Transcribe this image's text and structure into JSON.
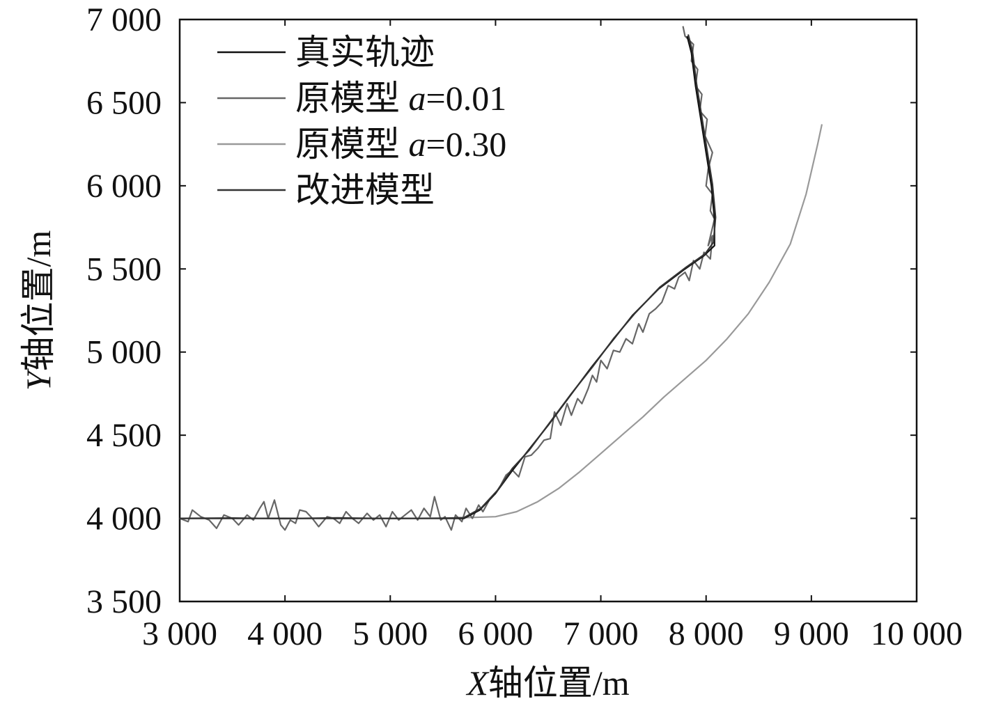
{
  "chart_data": {
    "type": "line",
    "title": "",
    "xlabel": {
      "var": "X",
      "text": "轴位置/m"
    },
    "ylabel": {
      "var": "Y",
      "text": "轴位置/m"
    },
    "xlim": [
      3000,
      10000
    ],
    "ylim": [
      3500,
      7000
    ],
    "xticks": [
      3000,
      4000,
      5000,
      6000,
      7000,
      8000,
      9000,
      10000
    ],
    "yticks": [
      3500,
      4000,
      4500,
      5000,
      5500,
      6000,
      6500,
      7000
    ],
    "xtick_labels": [
      "3 000",
      "4 000",
      "5 000",
      "6 000",
      "7 000",
      "8 000",
      "9 000",
      "10 000"
    ],
    "ytick_labels": [
      "3 500",
      "4 000",
      "4 500",
      "5 000",
      "5 500",
      "6 000",
      "6 500",
      "7 000"
    ],
    "legend_position": "top-left",
    "series": [
      {
        "name": "真实轨迹",
        "legend": {
          "prefix": "真实轨迹",
          "var": "",
          "suffix": ""
        },
        "color": "#111111",
        "points": [
          [
            3000,
            4000
          ],
          [
            4000,
            4000
          ],
          [
            5000,
            4000
          ],
          [
            5700,
            4000
          ],
          [
            5850,
            4050
          ],
          [
            6000,
            4150
          ],
          [
            6150,
            4280
          ],
          [
            6300,
            4400
          ],
          [
            6500,
            4560
          ],
          [
            6700,
            4730
          ],
          [
            6900,
            4900
          ],
          [
            7100,
            5060
          ],
          [
            7300,
            5220
          ],
          [
            7550,
            5380
          ],
          [
            7800,
            5500
          ],
          [
            7980,
            5580
          ],
          [
            8080,
            5640
          ],
          [
            8080,
            5800
          ],
          [
            8050,
            6000
          ],
          [
            8000,
            6200
          ],
          [
            7950,
            6400
          ],
          [
            7900,
            6600
          ],
          [
            7860,
            6800
          ],
          [
            7820,
            6900
          ]
        ]
      },
      {
        "name": "原模型 a=0.01",
        "legend": {
          "prefix": "原模型 ",
          "var": "a",
          "suffix": "=0.01"
        },
        "color": "#666666",
        "points": [
          [
            3000,
            4000
          ],
          [
            3080,
            3980
          ],
          [
            3120,
            4050
          ],
          [
            3200,
            4010
          ],
          [
            3280,
            3990
          ],
          [
            3350,
            3940
          ],
          [
            3420,
            4020
          ],
          [
            3500,
            4000
          ],
          [
            3560,
            3960
          ],
          [
            3640,
            4020
          ],
          [
            3700,
            3990
          ],
          [
            3760,
            4060
          ],
          [
            3800,
            4100
          ],
          [
            3840,
            4000
          ],
          [
            3900,
            4110
          ],
          [
            3960,
            3960
          ],
          [
            4000,
            3930
          ],
          [
            4050,
            3990
          ],
          [
            4100,
            3970
          ],
          [
            4140,
            4050
          ],
          [
            4200,
            4040
          ],
          [
            4260,
            4000
          ],
          [
            4320,
            3950
          ],
          [
            4400,
            4010
          ],
          [
            4460,
            4000
          ],
          [
            4520,
            3970
          ],
          [
            4580,
            4040
          ],
          [
            4640,
            4000
          ],
          [
            4700,
            3970
          ],
          [
            4780,
            4030
          ],
          [
            4840,
            3990
          ],
          [
            4900,
            4020
          ],
          [
            4960,
            3950
          ],
          [
            5020,
            4040
          ],
          [
            5080,
            3990
          ],
          [
            5140,
            4020
          ],
          [
            5200,
            4050
          ],
          [
            5260,
            3990
          ],
          [
            5320,
            4060
          ],
          [
            5380,
            4010
          ],
          [
            5420,
            4130
          ],
          [
            5480,
            3990
          ],
          [
            5520,
            4010
          ],
          [
            5580,
            3930
          ],
          [
            5620,
            4020
          ],
          [
            5680,
            3980
          ],
          [
            5720,
            4060
          ],
          [
            5780,
            4000
          ],
          [
            5840,
            4080
          ],
          [
            5880,
            4040
          ],
          [
            5940,
            4110
          ],
          [
            6000,
            4150
          ],
          [
            6050,
            4200
          ],
          [
            6100,
            4260
          ],
          [
            6160,
            4290
          ],
          [
            6220,
            4250
          ],
          [
            6280,
            4370
          ],
          [
            6340,
            4380
          ],
          [
            6400,
            4420
          ],
          [
            6460,
            4470
          ],
          [
            6520,
            4480
          ],
          [
            6560,
            4640
          ],
          [
            6620,
            4560
          ],
          [
            6680,
            4690
          ],
          [
            6720,
            4620
          ],
          [
            6780,
            4720
          ],
          [
            6820,
            4690
          ],
          [
            6880,
            4780
          ],
          [
            6920,
            4860
          ],
          [
            6960,
            4820
          ],
          [
            7000,
            4950
          ],
          [
            7060,
            4900
          ],
          [
            7120,
            5010
          ],
          [
            7180,
            5000
          ],
          [
            7240,
            5080
          ],
          [
            7300,
            5050
          ],
          [
            7360,
            5170
          ],
          [
            7400,
            5120
          ],
          [
            7460,
            5230
          ],
          [
            7520,
            5260
          ],
          [
            7580,
            5300
          ],
          [
            7640,
            5400
          ],
          [
            7700,
            5380
          ],
          [
            7740,
            5450
          ],
          [
            7800,
            5480
          ],
          [
            7840,
            5430
          ],
          [
            7880,
            5550
          ],
          [
            7940,
            5500
          ],
          [
            7980,
            5600
          ],
          [
            8040,
            5560
          ],
          [
            8060,
            5700
          ],
          [
            8020,
            5640
          ],
          [
            8080,
            5800
          ],
          [
            8040,
            5850
          ],
          [
            8060,
            5950
          ],
          [
            8000,
            6000
          ],
          [
            8020,
            6100
          ],
          [
            8060,
            6200
          ],
          [
            7990,
            6300
          ],
          [
            8010,
            6400
          ],
          [
            7940,
            6450
          ],
          [
            7960,
            6550
          ],
          [
            7900,
            6600
          ],
          [
            7920,
            6700
          ],
          [
            7860,
            6750
          ],
          [
            7880,
            6850
          ],
          [
            7800,
            6900
          ],
          [
            7780,
            6960
          ]
        ]
      },
      {
        "name": "原模型 a=0.30",
        "legend": {
          "prefix": "原模型 ",
          "var": "a",
          "suffix": "=0.30"
        },
        "color": "#999999",
        "points": [
          [
            5500,
            4000
          ],
          [
            6000,
            4010
          ],
          [
            6200,
            4040
          ],
          [
            6400,
            4100
          ],
          [
            6600,
            4180
          ],
          [
            6800,
            4280
          ],
          [
            7000,
            4390
          ],
          [
            7200,
            4500
          ],
          [
            7400,
            4610
          ],
          [
            7600,
            4730
          ],
          [
            7800,
            4840
          ],
          [
            8000,
            4950
          ],
          [
            8200,
            5080
          ],
          [
            8400,
            5230
          ],
          [
            8600,
            5420
          ],
          [
            8800,
            5650
          ],
          [
            8950,
            5950
          ],
          [
            9060,
            6250
          ],
          [
            9100,
            6370
          ]
        ]
      },
      {
        "name": "改进模型",
        "legend": {
          "prefix": "改进模型",
          "var": "",
          "suffix": ""
        },
        "color": "#333333",
        "points": [
          [
            3000,
            4000
          ],
          [
            3500,
            4002
          ],
          [
            4000,
            3998
          ],
          [
            4500,
            4003
          ],
          [
            5000,
            3999
          ],
          [
            5500,
            4001
          ],
          [
            5700,
            4004
          ],
          [
            5860,
            4060
          ],
          [
            6020,
            4170
          ],
          [
            6160,
            4300
          ],
          [
            6320,
            4410
          ],
          [
            6520,
            4580
          ],
          [
            6720,
            4750
          ],
          [
            6920,
            4910
          ],
          [
            7120,
            5080
          ],
          [
            7320,
            5230
          ],
          [
            7560,
            5390
          ],
          [
            7810,
            5510
          ],
          [
            7990,
            5590
          ],
          [
            8070,
            5660
          ],
          [
            8090,
            5810
          ],
          [
            8060,
            6010
          ],
          [
            8010,
            6210
          ],
          [
            7960,
            6410
          ],
          [
            7910,
            6610
          ],
          [
            7870,
            6810
          ],
          [
            7830,
            6910
          ]
        ]
      }
    ]
  }
}
